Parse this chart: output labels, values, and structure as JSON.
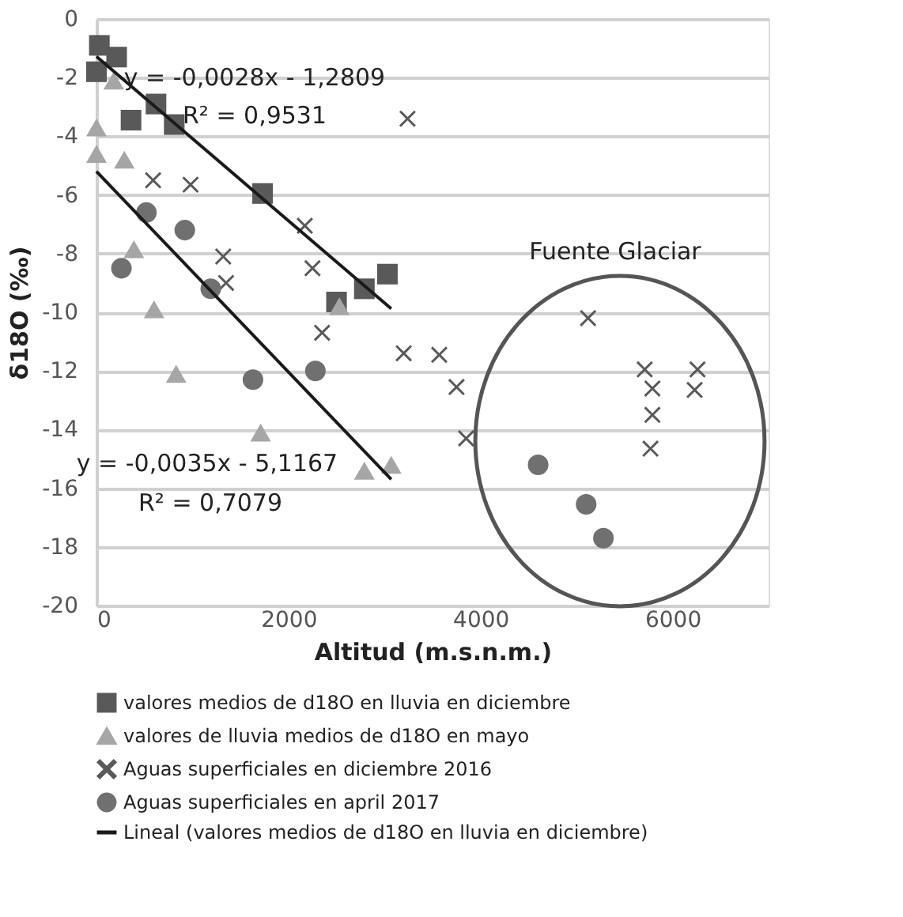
{
  "chart_data": {
    "type": "scatter",
    "xlabel": "Altitud (m.s.n.m.)",
    "ylabel": "δ18O (‰)",
    "xlim": [
      0,
      7000
    ],
    "xticks": [
      0,
      2000,
      4000,
      6000
    ],
    "ylim": [
      -20,
      0
    ],
    "yticks": [
      -20,
      -18,
      -16,
      -14,
      -12,
      -10,
      -8,
      -6,
      -4,
      -2,
      0
    ],
    "grid": "y",
    "legend": "bottom",
    "series": [
      {
        "name": "valores medios de d18O en lluvia en diciembre",
        "color": "#595959",
        "marker": "square",
        "x": [
          30,
          0,
          210,
          360,
          620,
          810,
          1730,
          2500,
          2790,
          3030
        ],
        "values": [
          -0.9,
          -1.8,
          -1.3,
          -3.45,
          -2.9,
          -3.6,
          -5.95,
          -9.65,
          -9.2,
          -8.7
        ]
      },
      {
        "name": "valores de lluvia medios de d18O en mayo",
        "color": "#a6a6a6",
        "marker": "triangle",
        "x": [
          0,
          0,
          180,
          290,
          390,
          600,
          830,
          1710,
          2530,
          2790,
          3070
        ],
        "values": [
          -3.7,
          -4.6,
          -2.1,
          -4.8,
          -7.85,
          -9.9,
          -12.1,
          -14.1,
          -9.8,
          -15.4,
          -15.2
        ]
      },
      {
        "name": "Aguas superficiales en  diciembre 2016",
        "color": "#595959",
        "marker": "cross",
        "x": [
          590,
          980,
          1320,
          1350,
          2170,
          2250,
          2350,
          3240,
          3200,
          3570,
          3750,
          3850,
          5120,
          5710,
          5790,
          5790,
          5770,
          6260,
          6230
        ],
        "values": [
          -5.5,
          -5.65,
          -8.1,
          -9.0,
          -7.05,
          -8.5,
          -10.7,
          -3.4,
          -11.4,
          -11.45,
          -12.55,
          -14.3,
          -10.2,
          -11.95,
          -12.6,
          -13.5,
          -14.65,
          -11.95,
          -12.65
        ]
      },
      {
        "name": "Aguas superficiales en april 2017",
        "color": "#707070",
        "marker": "circle",
        "x": [
          520,
          920,
          260,
          1190,
          1630,
          2280,
          4600,
          5100,
          5280
        ],
        "values": [
          -6.6,
          -7.2,
          -8.5,
          -9.2,
          -12.3,
          -12.0,
          -15.2,
          -16.55,
          -17.7
        ]
      },
      {
        "name": "Lineal (valores medios de d18O en lluvia en diciembre)",
        "type": "line",
        "color": "#1a1a1a",
        "marker": "none",
        "x": [
          0,
          3070
        ],
        "values": [
          -1.28,
          -9.88
        ]
      },
      {
        "type": "line",
        "color": "#1a1a1a",
        "marker": "none",
        "x": [
          0,
          3070
        ],
        "values": [
          -5.2,
          -15.7
        ]
      }
    ],
    "annotations": [
      "y = -0,0028x - 1,2809",
      "R² = 0,9531",
      "y = -0,0035x - 5,1167",
      "R² = 0,7079",
      "Fuente Glaciar"
    ]
  }
}
